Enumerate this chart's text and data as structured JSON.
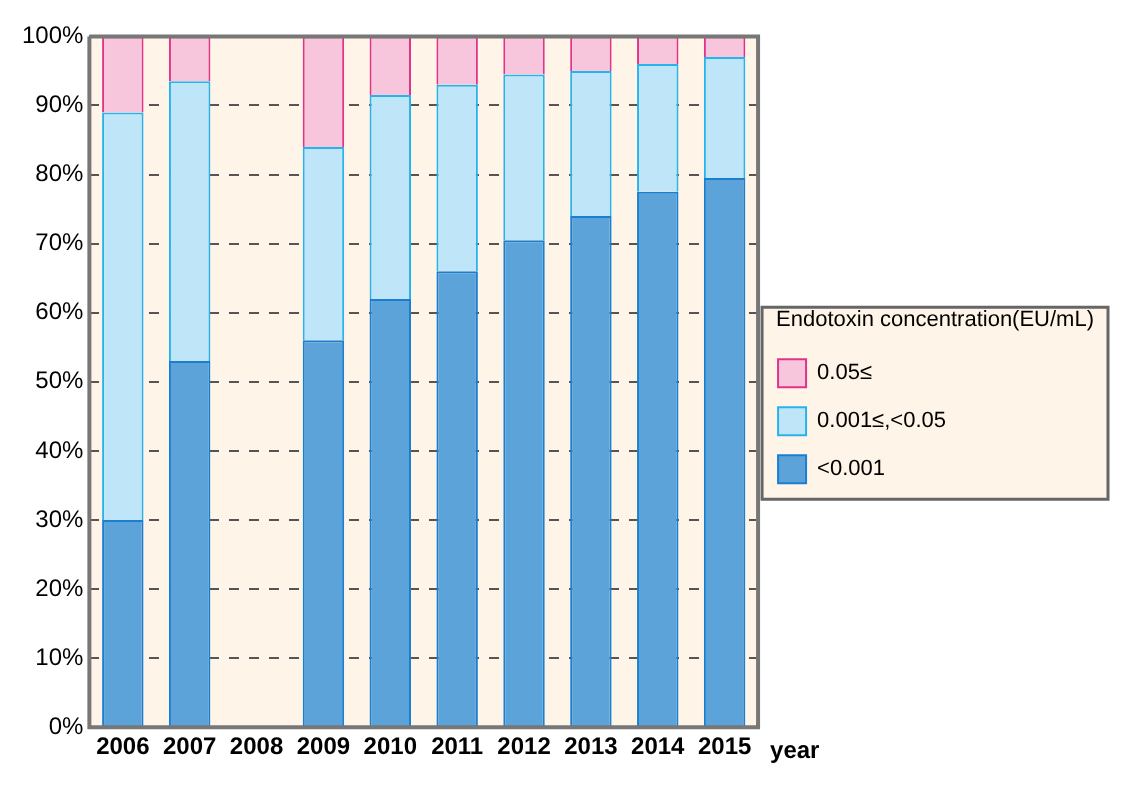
{
  "chart_data": {
    "type": "bar",
    "stacked": true,
    "xlabel": "year",
    "legend_title": "Endotoxin concentration(EU/mL)",
    "categories": [
      "2006",
      "2007",
      "2008",
      "2009",
      "2010",
      "2011",
      "2012",
      "2013",
      "2014",
      "2015"
    ],
    "series": [
      {
        "name": "<0.001",
        "color": "#5ba3d9",
        "values": [
          30,
          53,
          null,
          56,
          62,
          66,
          70.5,
          74,
          77.5,
          79.5
        ]
      },
      {
        "name": "0.001≤,<0.05",
        "color": "#bfe6f8",
        "values": [
          59,
          40.5,
          null,
          28,
          29.5,
          27,
          24,
          21,
          18.5,
          17.5
        ]
      },
      {
        "name": "0.05≤",
        "color": "#f7c6dc",
        "values": [
          11,
          6.5,
          null,
          16,
          8.5,
          7,
          5.5,
          5,
          4,
          3
        ]
      }
    ],
    "ylim": [
      0,
      100
    ],
    "yticks": [
      {
        "value": 0,
        "label": "0%"
      },
      {
        "value": 10,
        "label": "10%"
      },
      {
        "value": 20,
        "label": "20%"
      },
      {
        "value": 30,
        "label": "30%"
      },
      {
        "value": 40,
        "label": "40%"
      },
      {
        "value": 50,
        "label": "50%"
      },
      {
        "value": 60,
        "label": "60%"
      },
      {
        "value": 70,
        "label": "70%"
      },
      {
        "value": 80,
        "label": "80%"
      },
      {
        "value": 90,
        "label": "90%"
      },
      {
        "value": 100,
        "label": "100%"
      }
    ],
    "grid": "y",
    "legend": "right"
  }
}
